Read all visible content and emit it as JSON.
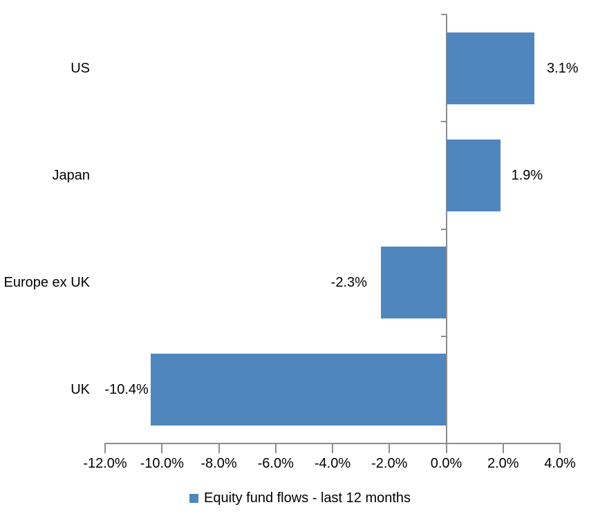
{
  "chart_data": {
    "type": "bar",
    "orientation": "horizontal",
    "categories": [
      "US",
      "Japan",
      "Europe ex UK",
      "UK"
    ],
    "values": [
      3.1,
      1.9,
      -2.3,
      -10.4
    ],
    "data_labels": [
      "3.1%",
      "1.9%",
      "-2.3%",
      "-10.4%"
    ],
    "series": [
      {
        "name": "Equity fund flows - last 12 months",
        "values": [
          3.1,
          1.9,
          -2.3,
          -10.4
        ]
      }
    ],
    "x_tick_labels": [
      "-12.0%",
      "-10.0%",
      "-8.0%",
      "-6.0%",
      "-4.0%",
      "-2.0%",
      "0.0%",
      "2.0%",
      "4.0%"
    ],
    "x_tick_values": [
      -12,
      -10,
      -8,
      -6,
      -4,
      -2,
      0,
      2,
      4
    ],
    "xlim": [
      -12,
      4
    ],
    "xlabel": "",
    "ylabel": "",
    "title": "",
    "grid": false,
    "legend_position": "bottom",
    "legend_label": "Equity fund flows - last 12 months",
    "bar_color": "#4E86BD",
    "axis_color": "#8C8C8C",
    "text_color": "#000000"
  }
}
